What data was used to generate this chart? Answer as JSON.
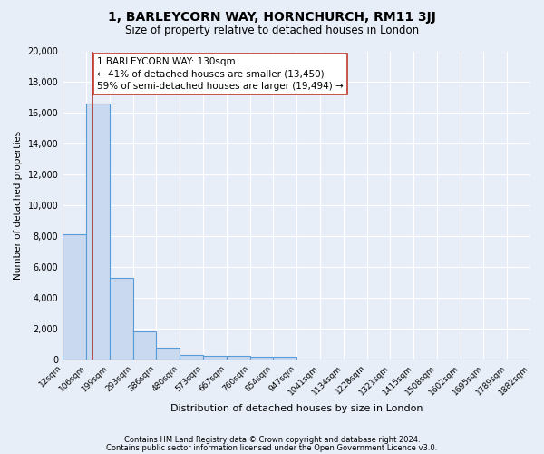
{
  "title": "1, BARLEYCORN WAY, HORNCHURCH, RM11 3JJ",
  "subtitle": "Size of property relative to detached houses in London",
  "xlabel": "Distribution of detached houses by size in London",
  "ylabel": "Number of detached properties",
  "bin_edges": [
    12,
    106,
    199,
    293,
    386,
    480,
    573,
    667,
    760,
    854,
    947,
    1041,
    1134,
    1228,
    1321,
    1415,
    1508,
    1602,
    1695,
    1789,
    1882
  ],
  "bin_labels": [
    "12sqm",
    "106sqm",
    "199sqm",
    "293sqm",
    "386sqm",
    "480sqm",
    "573sqm",
    "667sqm",
    "760sqm",
    "854sqm",
    "947sqm",
    "1041sqm",
    "1134sqm",
    "1228sqm",
    "1321sqm",
    "1415sqm",
    "1508sqm",
    "1602sqm",
    "1695sqm",
    "1789sqm",
    "1882sqm"
  ],
  "bar_heights": [
    8100,
    16600,
    5300,
    1800,
    750,
    300,
    200,
    200,
    150,
    150,
    0,
    0,
    0,
    0,
    0,
    0,
    0,
    0,
    0,
    0
  ],
  "bar_color": "#c9d9f0",
  "bar_edge_color": "#5b9bd5",
  "property_line_x": 130,
  "property_line_color": "#b03030",
  "annotation_text": "1 BARLEYCORN WAY: 130sqm\n← 41% of detached houses are smaller (13,450)\n59% of semi-detached houses are larger (19,494) →",
  "annotation_box_color": "#ffffff",
  "annotation_box_edge": "#c0392b",
  "ylim": [
    0,
    20000
  ],
  "yticks": [
    0,
    2000,
    4000,
    6000,
    8000,
    10000,
    12000,
    14000,
    16000,
    18000,
    20000
  ],
  "background_color": "#e8eef8",
  "plot_bg_color": "#e8eef8",
  "grid_color": "#ffffff",
  "footer_line1": "Contains HM Land Registry data © Crown copyright and database right 2024.",
  "footer_line2": "Contains public sector information licensed under the Open Government Licence v3.0.",
  "title_fontsize": 10,
  "subtitle_fontsize": 8.5,
  "annotation_fontsize": 7.5,
  "ylabel_fontsize": 7.5,
  "xlabel_fontsize": 8,
  "tick_fontsize": 6.5,
  "ytick_fontsize": 7
}
